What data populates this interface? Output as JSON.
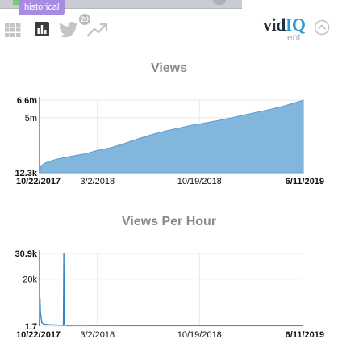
{
  "toolbar": {
    "historical_badge": "historical",
    "notification_count": "20",
    "icons": [
      "grid-icon",
      "bar-chart-icon",
      "twitter-icon",
      "trending-icon",
      "chevron-up-icon"
    ],
    "accent_color": "#a98be3"
  },
  "brand": {
    "name_part1": "vid",
    "name_part2": "IQ",
    "plan": "ent",
    "color": "#2b9bd1"
  },
  "chart_data": [
    {
      "type": "area",
      "title": "Views",
      "xlabel": "",
      "ylabel": "",
      "x_tick_labels": [
        "10/22/2017",
        "3/2/2018",
        "10/19/2018",
        "6/11/2019"
      ],
      "y_tick_labels": [
        "6.6m",
        "5m",
        "12.3k"
      ],
      "xlim": [
        "2017-10-22",
        "2019-06-11"
      ],
      "ylim": [
        12300,
        6600000
      ],
      "grid": true,
      "color": "#82b6dc",
      "x": [
        "2017-10-22",
        "2017-10-25",
        "2017-11-01",
        "2017-11-15",
        "2017-12-01",
        "2018-01-01",
        "2018-02-01",
        "2018-03-02",
        "2018-04-01",
        "2018-05-01",
        "2018-06-01",
        "2018-07-01",
        "2018-08-01",
        "2018-09-01",
        "2018-10-01",
        "2018-10-19",
        "2018-12-01",
        "2019-01-01",
        "2019-02-01",
        "2019-03-01",
        "2019-04-01",
        "2019-05-01",
        "2019-06-11"
      ],
      "y": [
        12300,
        550000,
        860000,
        1070000,
        1260000,
        1500000,
        1720000,
        2040000,
        2280000,
        2650000,
        3080000,
        3450000,
        3780000,
        4060000,
        4320000,
        4440000,
        4750000,
        5010000,
        5280000,
        5530000,
        5800000,
        6100000,
        6600000
      ]
    },
    {
      "type": "line",
      "title": "Views Per Hour",
      "xlabel": "",
      "ylabel": "",
      "x_tick_labels": [
        "10/22/2017",
        "3/2/2018",
        "10/19/2018",
        "6/11/2019"
      ],
      "y_tick_labels": [
        "30.9k",
        "20k",
        "1.7"
      ],
      "xlim": [
        "2017-10-22",
        "2019-06-11"
      ],
      "ylim": [
        1.7,
        30900
      ],
      "grid": true,
      "color": "#2f86c7",
      "x": [
        "2017-10-22",
        "2017-10-23",
        "2017-10-24",
        "2017-10-27",
        "2017-11-01",
        "2017-11-15",
        "2017-12-01",
        "2017-12-10",
        "2017-12-15",
        "2017-12-16",
        "2017-12-17",
        "2017-12-18",
        "2017-12-25",
        "2018-01-15",
        "2018-03-02",
        "2018-05-01",
        "2018-07-01",
        "2018-10-19",
        "2019-01-01",
        "2019-03-01",
        "2019-06-11"
      ],
      "y": [
        1.7,
        12000,
        6000,
        1500,
        900,
        600,
        500,
        450,
        400,
        30900,
        900,
        400,
        300,
        350,
        320,
        300,
        280,
        300,
        290,
        280,
        300
      ]
    }
  ]
}
